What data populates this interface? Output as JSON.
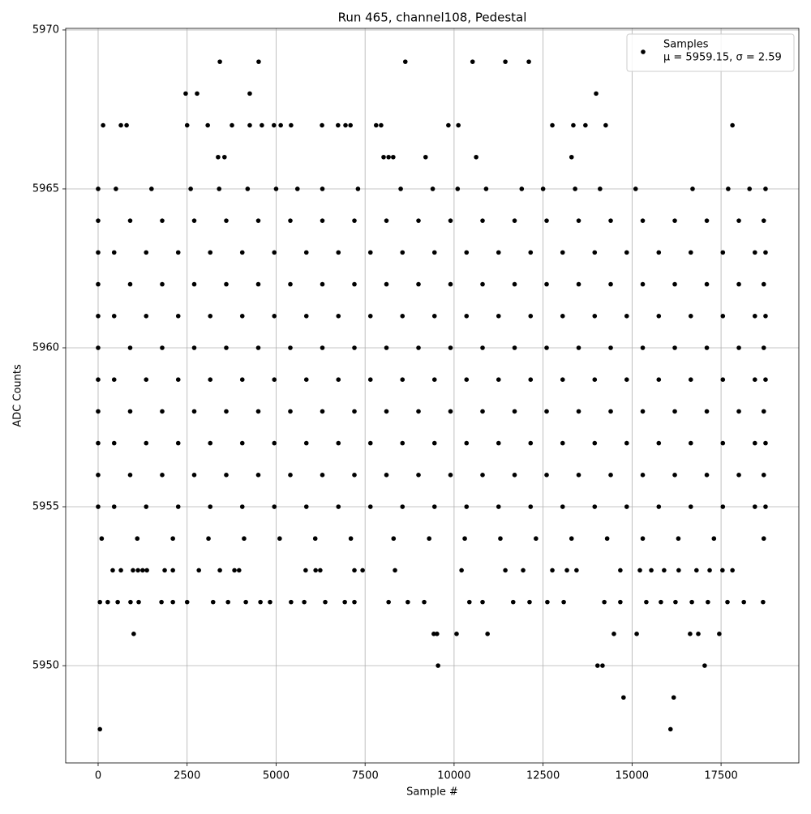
{
  "chart_data": {
    "type": "scatter",
    "title": "Run 465, channel108, Pedestal",
    "x_label": "Sample #",
    "y_label": "ADC Counts",
    "xlim": [
      -911,
      19685
    ],
    "ylim": [
      5946.94,
      5970.05
    ],
    "xticks": [
      0,
      2500,
      5000,
      7500,
      10000,
      12500,
      15000,
      17500
    ],
    "yticks": [
      5950,
      5955,
      5960,
      5965,
      5970
    ],
    "grid": true,
    "legend_position": "upper right",
    "legend_note": "μ = 5959.15, σ = 2.59",
    "series": [
      {
        "name": "Samples",
        "color": "#000000",
        "x": [
          50,
          16080,
          14760,
          16170,
          9550,
          14030,
          14170,
          17040,
          1000,
          9430,
          9520,
          10070,
          10940,
          14490,
          15130,
          16630,
          16860,
          17450,
          50,
          270,
          550,
          910,
          1140,
          1780,
          2100,
          2500,
          3230,
          3650,
          4150,
          4560,
          4830,
          5420,
          5790,
          6380,
          6930,
          7200,
          8160,
          8700,
          9160,
          10430,
          10800,
          11660,
          12120,
          12620,
          13080,
          14220,
          14670,
          15400,
          15810,
          16220,
          16680,
          17130,
          17680,
          18140,
          18680,
          410,
          640,
          980,
          1120,
          1250,
          1370,
          1870,
          2100,
          2830,
          3420,
          3830,
          3960,
          5830,
          6110,
          6240,
          7200,
          7430,
          8340,
          10210,
          11440,
          11940,
          12760,
          13170,
          13440,
          14670,
          15220,
          15540,
          15900,
          16310,
          16810,
          17180,
          17540,
          17820,
          100,
          1100,
          2100,
          3100,
          4100,
          5100,
          6100,
          7100,
          8300,
          9300,
          10300,
          11300,
          12300,
          13300,
          14300,
          15300,
          16300,
          17300,
          18700,
          0,
          450,
          1350,
          2250,
          3150,
          4050,
          4950,
          5850,
          6750,
          7650,
          8550,
          9450,
          10350,
          11250,
          12150,
          13050,
          13950,
          14850,
          15750,
          16650,
          17550,
          18450,
          18750,
          0,
          900,
          1800,
          2700,
          3600,
          4500,
          5400,
          6300,
          7200,
          8100,
          9000,
          9900,
          10800,
          11700,
          12600,
          13500,
          14400,
          15300,
          16200,
          17100,
          18000,
          18700,
          0,
          450,
          1350,
          2250,
          3150,
          4050,
          4950,
          5850,
          6750,
          7650,
          8550,
          9450,
          10350,
          11250,
          12150,
          13050,
          13950,
          14850,
          15750,
          16650,
          17550,
          18450,
          18750,
          0,
          900,
          1800,
          2700,
          3600,
          4500,
          5400,
          6300,
          7200,
          8100,
          9000,
          9900,
          10800,
          11700,
          12600,
          13500,
          14400,
          15300,
          16200,
          17100,
          18000,
          18700,
          0,
          450,
          1350,
          2250,
          3150,
          4050,
          4950,
          5850,
          6750,
          7650,
          8550,
          9450,
          10350,
          11250,
          12150,
          13050,
          13950,
          14850,
          15750,
          16650,
          17550,
          18450,
          18750,
          0,
          900,
          1800,
          2700,
          3600,
          4500,
          5400,
          6300,
          7200,
          8100,
          9000,
          9900,
          10800,
          11700,
          12600,
          13500,
          14400,
          15300,
          16200,
          17100,
          18000,
          18700,
          0,
          450,
          1350,
          2250,
          3150,
          4050,
          4950,
          5850,
          6750,
          7650,
          8550,
          9450,
          10350,
          11250,
          12150,
          13050,
          13950,
          14850,
          15750,
          16650,
          17550,
          18450,
          18750,
          0,
          900,
          1800,
          2700,
          3600,
          4500,
          5400,
          6300,
          7200,
          8100,
          9000,
          9900,
          10800,
          11700,
          12600,
          13500,
          14400,
          15300,
          16200,
          17100,
          18000,
          18700,
          0,
          450,
          1350,
          2250,
          3150,
          4050,
          4950,
          5850,
          6750,
          7650,
          8550,
          9450,
          10350,
          11250,
          12150,
          13050,
          13950,
          14850,
          15750,
          16650,
          17550,
          18450,
          18750,
          0,
          900,
          1800,
          2700,
          3600,
          4500,
          5400,
          6300,
          7200,
          8100,
          9000,
          9900,
          10800,
          11700,
          12600,
          13500,
          14400,
          15300,
          16200,
          17100,
          18000,
          18700,
          0,
          500,
          1500,
          2600,
          3400,
          4200,
          5000,
          5600,
          6300,
          7300,
          8500,
          9400,
          10100,
          10900,
          11900,
          12500,
          13400,
          14100,
          15100,
          16700,
          17700,
          18300,
          18750,
          3370,
          3550,
          8020,
          8160,
          8290,
          9200,
          10620,
          13300,
          140,
          640,
          800,
          2500,
          3080,
          3760,
          4260,
          4600,
          4940,
          5130,
          5420,
          6290,
          6740,
          6950,
          7090,
          7810,
          7950,
          9840,
          10120,
          12760,
          13350,
          13690,
          14260,
          17820,
          2460,
          2780,
          4260,
          13990,
          3420,
          4510,
          8630,
          10520,
          11440,
          12100
        ],
        "values": [
          5948,
          5948,
          5949,
          5949,
          5950,
          5950,
          5950,
          5950,
          5951,
          5951,
          5951,
          5951,
          5951,
          5951,
          5951,
          5951,
          5951,
          5951,
          5952,
          5952,
          5952,
          5952,
          5952,
          5952,
          5952,
          5952,
          5952,
          5952,
          5952,
          5952,
          5952,
          5952,
          5952,
          5952,
          5952,
          5952,
          5952,
          5952,
          5952,
          5952,
          5952,
          5952,
          5952,
          5952,
          5952,
          5952,
          5952,
          5952,
          5952,
          5952,
          5952,
          5952,
          5952,
          5952,
          5952,
          5953,
          5953,
          5953,
          5953,
          5953,
          5953,
          5953,
          5953,
          5953,
          5953,
          5953,
          5953,
          5953,
          5953,
          5953,
          5953,
          5953,
          5953,
          5953,
          5953,
          5953,
          5953,
          5953,
          5953,
          5953,
          5953,
          5953,
          5953,
          5953,
          5953,
          5953,
          5953,
          5953,
          5954,
          5954,
          5954,
          5954,
          5954,
          5954,
          5954,
          5954,
          5954,
          5954,
          5954,
          5954,
          5954,
          5954,
          5954,
          5954,
          5954,
          5954,
          5954,
          5955,
          5955,
          5955,
          5955,
          5955,
          5955,
          5955,
          5955,
          5955,
          5955,
          5955,
          5955,
          5955,
          5955,
          5955,
          5955,
          5955,
          5955,
          5955,
          5955,
          5955,
          5955,
          5955,
          5956,
          5956,
          5956,
          5956,
          5956,
          5956,
          5956,
          5956,
          5956,
          5956,
          5956,
          5956,
          5956,
          5956,
          5956,
          5956,
          5956,
          5956,
          5956,
          5956,
          5956,
          5956,
          5957,
          5957,
          5957,
          5957,
          5957,
          5957,
          5957,
          5957,
          5957,
          5957,
          5957,
          5957,
          5957,
          5957,
          5957,
          5957,
          5957,
          5957,
          5957,
          5957,
          5957,
          5957,
          5957,
          5958,
          5958,
          5958,
          5958,
          5958,
          5958,
          5958,
          5958,
          5958,
          5958,
          5958,
          5958,
          5958,
          5958,
          5958,
          5958,
          5958,
          5958,
          5958,
          5958,
          5958,
          5958,
          5959,
          5959,
          5959,
          5959,
          5959,
          5959,
          5959,
          5959,
          5959,
          5959,
          5959,
          5959,
          5959,
          5959,
          5959,
          5959,
          5959,
          5959,
          5959,
          5959,
          5959,
          5959,
          5959,
          5960,
          5960,
          5960,
          5960,
          5960,
          5960,
          5960,
          5960,
          5960,
          5960,
          5960,
          5960,
          5960,
          5960,
          5960,
          5960,
          5960,
          5960,
          5960,
          5960,
          5960,
          5960,
          5961,
          5961,
          5961,
          5961,
          5961,
          5961,
          5961,
          5961,
          5961,
          5961,
          5961,
          5961,
          5961,
          5961,
          5961,
          5961,
          5961,
          5961,
          5961,
          5961,
          5961,
          5961,
          5961,
          5962,
          5962,
          5962,
          5962,
          5962,
          5962,
          5962,
          5962,
          5962,
          5962,
          5962,
          5962,
          5962,
          5962,
          5962,
          5962,
          5962,
          5962,
          5962,
          5962,
          5962,
          5962,
          5963,
          5963,
          5963,
          5963,
          5963,
          5963,
          5963,
          5963,
          5963,
          5963,
          5963,
          5963,
          5963,
          5963,
          5963,
          5963,
          5963,
          5963,
          5963,
          5963,
          5963,
          5963,
          5963,
          5964,
          5964,
          5964,
          5964,
          5964,
          5964,
          5964,
          5964,
          5964,
          5964,
          5964,
          5964,
          5964,
          5964,
          5964,
          5964,
          5964,
          5964,
          5964,
          5964,
          5964,
          5964,
          5965,
          5965,
          5965,
          5965,
          5965,
          5965,
          5965,
          5965,
          5965,
          5965,
          5965,
          5965,
          5965,
          5965,
          5965,
          5965,
          5965,
          5965,
          5965,
          5965,
          5965,
          5965,
          5965,
          5966,
          5966,
          5966,
          5966,
          5966,
          5966,
          5966,
          5966,
          5967,
          5967,
          5967,
          5967,
          5967,
          5967,
          5967,
          5967,
          5967,
          5967,
          5967,
          5967,
          5967,
          5967,
          5967,
          5967,
          5967,
          5967,
          5967,
          5967,
          5967,
          5967,
          5967,
          5967,
          5968,
          5968,
          5968,
          5968,
          5969,
          5969,
          5969,
          5969,
          5969,
          5969
        ]
      }
    ]
  }
}
